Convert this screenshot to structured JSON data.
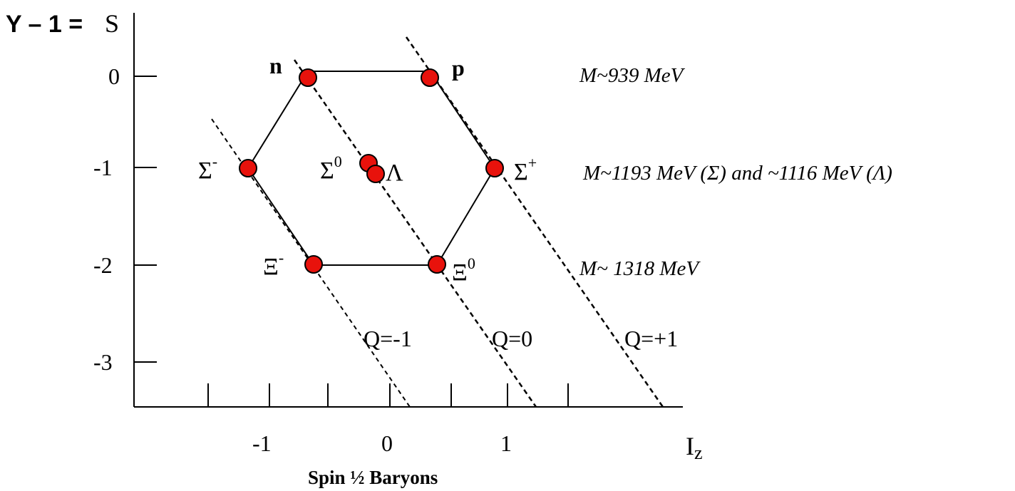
{
  "y_axis_title_left": "Y – 1 =",
  "y_axis_title_right": "S",
  "x_axis_title_main": "I",
  "x_axis_title_sub": "z",
  "caption": "Spin ½ Baryons",
  "y_ticks": [
    "0",
    "-1",
    "-2",
    "-3"
  ],
  "x_ticks": [
    "-1",
    "0",
    "1"
  ],
  "particles": {
    "n": "n",
    "p": "p",
    "sigma_minus": {
      "base": "Σ",
      "sup": "-"
    },
    "sigma_zero": {
      "base": "Σ",
      "sup": "0"
    },
    "lambda": "Λ",
    "sigma_plus": {
      "base": "Σ",
      "sup": "+"
    },
    "xi_minus": {
      "base": "Ξ",
      "sup": "-"
    },
    "xi_zero": {
      "base": "Ξ",
      "sup": "0"
    }
  },
  "charge_lines": {
    "q_minus": "Q=-1",
    "q_zero": "Q=0",
    "q_plus": "Q=+1"
  },
  "mass_labels": {
    "row0": "M~939 MeV",
    "row1": "M~1193 MeV (Σ) and ~1116 MeV (Λ)",
    "row2": "M~ 1318 MeV"
  },
  "colors": {
    "particle_fill": "#e8120c",
    "particle_stroke": "#000000",
    "line": "#000000"
  }
}
